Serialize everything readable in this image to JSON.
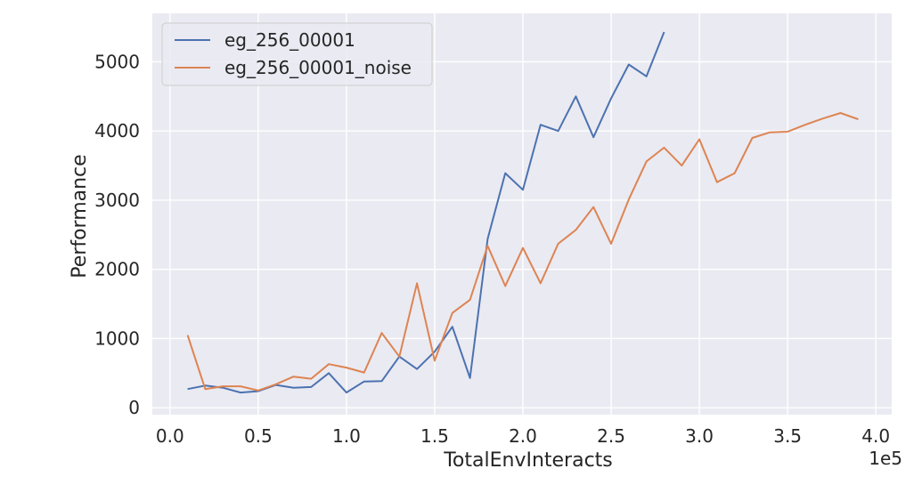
{
  "chart_data": {
    "type": "line",
    "title": "",
    "xlabel": "TotalEnvInteracts",
    "ylabel": "Performance",
    "x_offset_label": "1e5",
    "xlim": [
      -0.1,
      4.09
    ],
    "ylim": [
      -100,
      5700
    ],
    "x_ticks": [
      0.0,
      0.5,
      1.0,
      1.5,
      2.0,
      2.5,
      3.0,
      3.5,
      4.0
    ],
    "x_tick_labels": [
      "0.0",
      "0.5",
      "1.0",
      "1.5",
      "2.0",
      "2.5",
      "3.0",
      "3.5",
      "4.0"
    ],
    "y_ticks": [
      0,
      1000,
      2000,
      3000,
      4000,
      5000
    ],
    "y_tick_labels": [
      "0",
      "1000",
      "2000",
      "3000",
      "4000",
      "5000"
    ],
    "grid": true,
    "legend_position": "top-left",
    "background_color": "#eaeaf2",
    "grid_color": "#ffffff",
    "series": [
      {
        "name": "eg_256_00001",
        "color": "#4c72b0",
        "x": [
          0.1,
          0.2,
          0.3,
          0.4,
          0.5,
          0.6,
          0.7,
          0.8,
          0.9,
          1.0,
          1.1,
          1.2,
          1.3,
          1.4,
          1.5,
          1.6,
          1.7,
          1.8,
          1.9,
          2.0,
          2.1,
          2.2,
          2.3,
          2.4,
          2.5,
          2.6,
          2.7,
          2.8
        ],
        "y": [
          270,
          320,
          290,
          220,
          240,
          330,
          290,
          300,
          500,
          220,
          380,
          385,
          740,
          560,
          810,
          1170,
          430,
          2440,
          3390,
          3150,
          4090,
          4000,
          4500,
          3910,
          4470,
          4960,
          4790,
          5430
        ]
      },
      {
        "name": "eg_256_00001_noise",
        "color": "#dd8452",
        "x": [
          0.1,
          0.2,
          0.3,
          0.4,
          0.5,
          0.6,
          0.7,
          0.8,
          0.9,
          1.0,
          1.1,
          1.2,
          1.3,
          1.4,
          1.5,
          1.6,
          1.7,
          1.8,
          1.9,
          2.0,
          2.1,
          2.2,
          2.3,
          2.4,
          2.5,
          2.6,
          2.7,
          2.8,
          2.9,
          3.0,
          3.1,
          3.2,
          3.3,
          3.4,
          3.5,
          3.6,
          3.7,
          3.8,
          3.9
        ],
        "y": [
          1050,
          270,
          310,
          310,
          250,
          340,
          450,
          420,
          630,
          580,
          510,
          1080,
          740,
          1800,
          680,
          1370,
          1560,
          2340,
          1760,
          2310,
          1800,
          2370,
          2570,
          2900,
          2370,
          3010,
          3560,
          3760,
          3500,
          3880,
          3260,
          3390,
          3900,
          3980,
          3990,
          4090,
          4180,
          4260,
          4170
        ]
      }
    ]
  }
}
